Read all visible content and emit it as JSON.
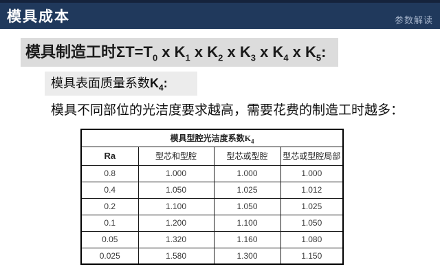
{
  "slide": {
    "header": {
      "title": "模具成本",
      "corner_label": "参数解读"
    },
    "formula": {
      "parts": [
        "模具制造工时ΣT=T",
        "0",
        " x K",
        "1",
        " x K",
        "2",
        " x K",
        "3",
        " x K",
        "4",
        " x K",
        "5",
        ":"
      ]
    },
    "section": {
      "heading_text": "模具表面质量系数",
      "heading_k": "K",
      "heading_sub": "4",
      "heading_colon": ":",
      "body": "模具不同部位的光洁度要求越高，需要花费的制造工时越多："
    },
    "table": {
      "title_text": "模具型腔光洁度系数K",
      "title_sub": "4",
      "columns": [
        "Ra",
        "型芯和型腔",
        "型芯或型腔",
        "型芯或型腔局部"
      ],
      "rows": [
        [
          "0.8",
          "1.000",
          "1.000",
          "1.000"
        ],
        [
          "0.4",
          "1.050",
          "1.025",
          "1.012"
        ],
        [
          "0.2",
          "1.100",
          "1.050",
          "1.025"
        ],
        [
          "0.1",
          "1.200",
          "1.100",
          "1.050"
        ],
        [
          "0.05",
          "1.320",
          "1.160",
          "1.080"
        ],
        [
          "0.025",
          "1.580",
          "1.300",
          "1.150"
        ]
      ]
    },
    "colors": {
      "header_bg": "#20395c",
      "header_top_strip": "#15233c",
      "corner_text": "#a2b1c8",
      "formula_bg": "#dcdcdc",
      "subheading_bg": "#ececec",
      "table_border": "#000000"
    }
  }
}
